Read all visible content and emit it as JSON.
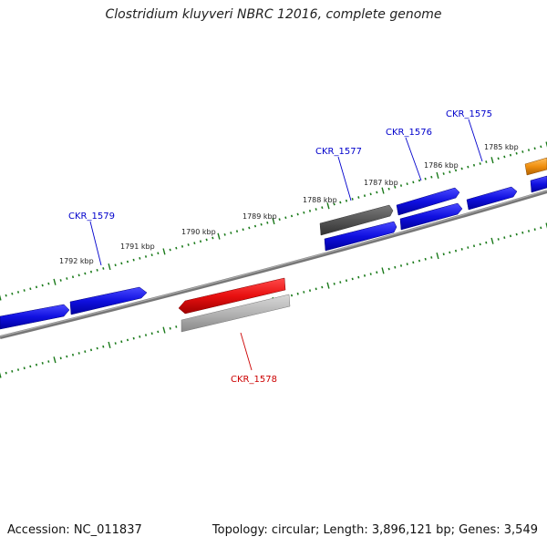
{
  "title": "Clostridium kluyveri NBRC 12016, complete genome",
  "footer": {
    "accession": "Accession: NC_011837",
    "summary": "Topology: circular; Length: 3,896,121 bp; Genes: 3,549"
  },
  "scale_labels": [
    "1785 kbp",
    "1786 kbp",
    "1787 kbp",
    "1788 kbp",
    "1789 kbp",
    "1790 kbp",
    "1791 kbp",
    "1792 kbp"
  ],
  "gene_labels": [
    {
      "text": "CKR_1575",
      "color": "#0000cc"
    },
    {
      "text": "CKR_1576",
      "color": "#0000cc"
    },
    {
      "text": "CKR_1577",
      "color": "#0000cc"
    },
    {
      "text": "CKR_1578",
      "color": "#cc0000"
    },
    {
      "text": "CKR_1579",
      "color": "#0000cc"
    }
  ],
  "colors": {
    "cds_forward": "#1a1aee",
    "cds_reverse_highlight": "#ee1111",
    "gene_grey_dark": "#5a5a5a",
    "gene_grey_light": "#b8b8b8",
    "gene_orange": "#f0900a",
    "backbone": "#808080",
    "ticks": "#1a7a1a"
  }
}
